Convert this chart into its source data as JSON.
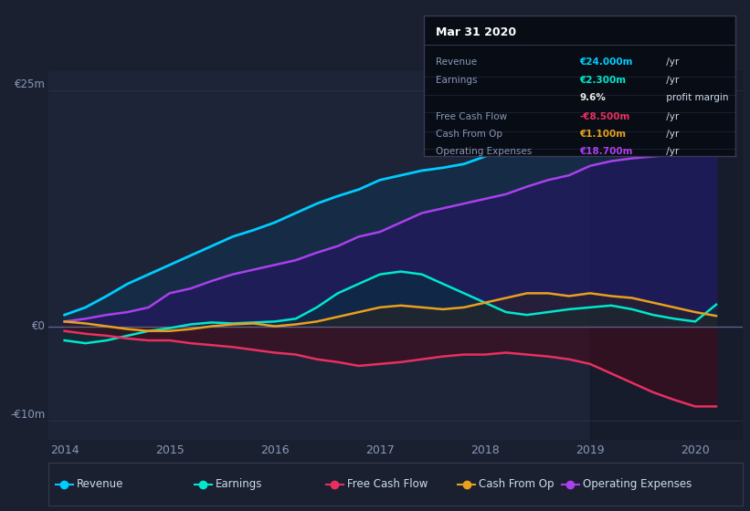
{
  "bg_color": "#1b2030",
  "plot_bg_color": "#1e2438",
  "grid_color": "#2a3048",
  "zero_line_color": "#6677aa",
  "years": [
    2014.0,
    2014.2,
    2014.4,
    2014.6,
    2014.8,
    2015.0,
    2015.2,
    2015.4,
    2015.6,
    2015.8,
    2016.0,
    2016.2,
    2016.4,
    2016.6,
    2016.8,
    2017.0,
    2017.2,
    2017.4,
    2017.6,
    2017.8,
    2018.0,
    2018.2,
    2018.4,
    2018.6,
    2018.8,
    2019.0,
    2019.2,
    2019.4,
    2019.6,
    2019.8,
    2020.0,
    2020.2
  ],
  "revenue": [
    1.2,
    2.0,
    3.2,
    4.5,
    5.5,
    6.5,
    7.5,
    8.5,
    9.5,
    10.2,
    11.0,
    12.0,
    13.0,
    13.8,
    14.5,
    15.5,
    16.0,
    16.5,
    16.8,
    17.2,
    18.0,
    18.8,
    19.5,
    19.8,
    20.2,
    21.0,
    21.5,
    21.0,
    21.5,
    22.0,
    23.5,
    24.0
  ],
  "earnings": [
    -1.5,
    -1.8,
    -1.5,
    -1.0,
    -0.5,
    -0.2,
    0.2,
    0.4,
    0.3,
    0.4,
    0.5,
    0.8,
    2.0,
    3.5,
    4.5,
    5.5,
    5.8,
    5.5,
    4.5,
    3.5,
    2.5,
    1.5,
    1.2,
    1.5,
    1.8,
    2.0,
    2.2,
    1.8,
    1.2,
    0.8,
    0.5,
    2.3
  ],
  "free_cash_flow": [
    -0.5,
    -0.8,
    -1.0,
    -1.3,
    -1.5,
    -1.5,
    -1.8,
    -2.0,
    -2.2,
    -2.5,
    -2.8,
    -3.0,
    -3.5,
    -3.8,
    -4.2,
    -4.0,
    -3.8,
    -3.5,
    -3.2,
    -3.0,
    -3.0,
    -2.8,
    -3.0,
    -3.2,
    -3.5,
    -4.0,
    -5.0,
    -6.0,
    -7.0,
    -7.8,
    -8.5,
    -8.5
  ],
  "cash_from_op": [
    0.5,
    0.3,
    0.0,
    -0.3,
    -0.5,
    -0.5,
    -0.3,
    0.0,
    0.2,
    0.3,
    0.0,
    0.2,
    0.5,
    1.0,
    1.5,
    2.0,
    2.2,
    2.0,
    1.8,
    2.0,
    2.5,
    3.0,
    3.5,
    3.5,
    3.2,
    3.5,
    3.2,
    3.0,
    2.5,
    2.0,
    1.5,
    1.1
  ],
  "op_expenses": [
    0.5,
    0.8,
    1.2,
    1.5,
    2.0,
    3.5,
    4.0,
    4.8,
    5.5,
    6.0,
    6.5,
    7.0,
    7.8,
    8.5,
    9.5,
    10.0,
    11.0,
    12.0,
    12.5,
    13.0,
    13.5,
    14.0,
    14.8,
    15.5,
    16.0,
    17.0,
    17.5,
    17.8,
    18.0,
    18.2,
    18.5,
    18.7
  ],
  "revenue_color": "#00ccff",
  "earnings_color": "#00e8cc",
  "fcf_color": "#e83060",
  "cashop_color": "#e8a020",
  "opex_color": "#aa40ee",
  "highlight_start": 2019.0,
  "ylim": [
    -12,
    27
  ],
  "xlim": [
    2013.85,
    2020.45
  ],
  "xticks": [
    2014,
    2015,
    2016,
    2017,
    2018,
    2019,
    2020
  ],
  "ylabel_25": "€25m",
  "ylabel_0": "€0",
  "ylabel_neg10": "-€10m",
  "infobox_bg": "#080c14",
  "infobox_border": "#3a3a55",
  "info_title": "Mar 31 2020",
  "info_rows": [
    {
      "label": "Revenue",
      "value": "€24.000m",
      "color": "#00ccff",
      "suffix": " /yr"
    },
    {
      "label": "Earnings",
      "value": "€2.300m",
      "color": "#00e8cc",
      "suffix": " /yr"
    },
    {
      "label": "",
      "value": "9.6%",
      "color": "#e8e8e8",
      "suffix": " profit margin"
    },
    {
      "label": "Free Cash Flow",
      "value": "-€8.500m",
      "color": "#e83060",
      "suffix": " /yr"
    },
    {
      "label": "Cash From Op",
      "value": "€1.100m",
      "color": "#e8a020",
      "suffix": " /yr"
    },
    {
      "label": "Operating Expenses",
      "value": "€18.700m",
      "color": "#aa40ee",
      "suffix": " /yr"
    }
  ],
  "legend_items": [
    {
      "label": "Revenue",
      "color": "#00ccff"
    },
    {
      "label": "Earnings",
      "color": "#00e8cc"
    },
    {
      "label": "Free Cash Flow",
      "color": "#e83060"
    },
    {
      "label": "Cash From Op",
      "color": "#e8a020"
    },
    {
      "label": "Operating Expenses",
      "color": "#aa40ee"
    }
  ]
}
